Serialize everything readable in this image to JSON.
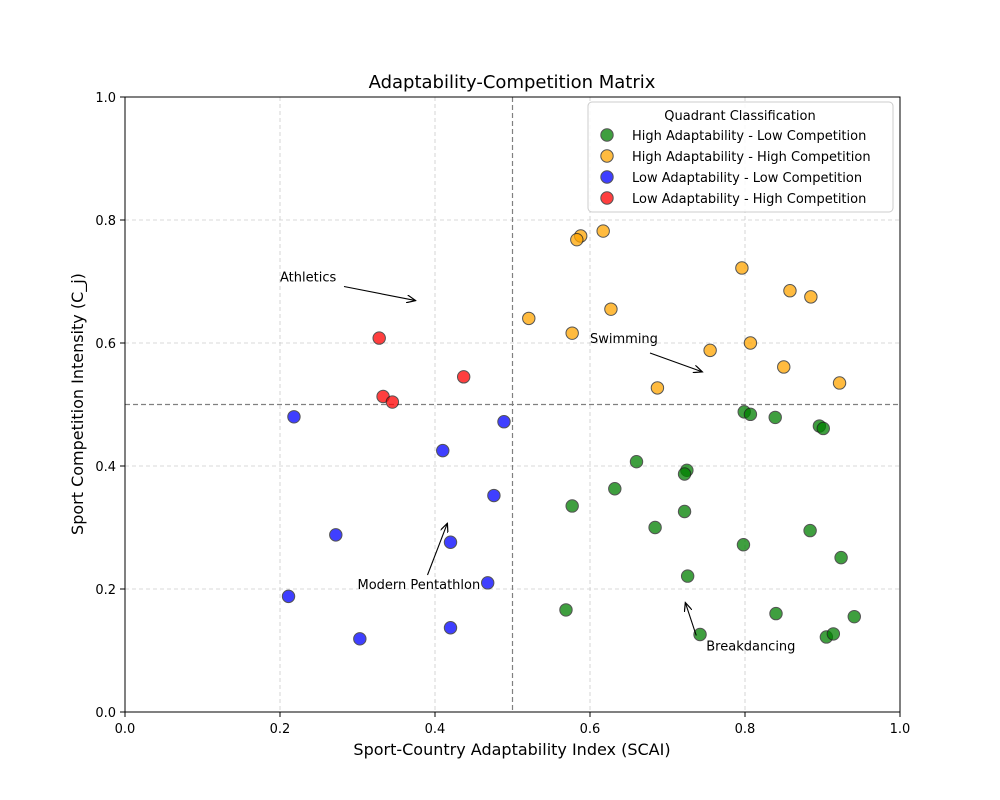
{
  "chart_data": {
    "type": "scatter",
    "title": "Adaptability-Competition Matrix",
    "xlabel": "Sport-Country Adaptability Index (SCAI)",
    "ylabel": "Sport Competition Intensity (C_j)",
    "xlim": [
      0,
      1
    ],
    "ylim": [
      0,
      1
    ],
    "xticks": [
      "0.0",
      "0.2",
      "0.4",
      "0.6",
      "0.8",
      "1.0"
    ],
    "yticks": [
      "0.0",
      "0.2",
      "0.4",
      "0.6",
      "0.8",
      "1.0"
    ],
    "grid": true,
    "reference_lines": {
      "x": 0.5,
      "y": 0.5
    },
    "legend": {
      "title": "Quadrant Classification",
      "placement": "top-right"
    },
    "series": [
      {
        "name": "High Adaptability - Low Competition",
        "color": "#008000",
        "points": [
          [
            0.799,
            0.488
          ],
          [
            0.807,
            0.484
          ],
          [
            0.839,
            0.479
          ],
          [
            0.896,
            0.465
          ],
          [
            0.901,
            0.461
          ],
          [
            0.66,
            0.407
          ],
          [
            0.725,
            0.393
          ],
          [
            0.722,
            0.387
          ],
          [
            0.632,
            0.363
          ],
          [
            0.577,
            0.335
          ],
          [
            0.722,
            0.326
          ],
          [
            0.684,
            0.3
          ],
          [
            0.884,
            0.295
          ],
          [
            0.798,
            0.272
          ],
          [
            0.924,
            0.251
          ],
          [
            0.726,
            0.221
          ],
          [
            0.569,
            0.166
          ],
          [
            0.84,
            0.16
          ],
          [
            0.941,
            0.155
          ],
          [
            0.742,
            0.126
          ],
          [
            0.905,
            0.122
          ],
          [
            0.914,
            0.127
          ]
        ]
      },
      {
        "name": "High Adaptability - High Competition",
        "color": "#FFA500",
        "points": [
          [
            0.617,
            0.782
          ],
          [
            0.588,
            0.774
          ],
          [
            0.583,
            0.768
          ],
          [
            0.796,
            0.722
          ],
          [
            0.858,
            0.685
          ],
          [
            0.885,
            0.675
          ],
          [
            0.627,
            0.655
          ],
          [
            0.521,
            0.64
          ],
          [
            0.577,
            0.616
          ],
          [
            0.807,
            0.6
          ],
          [
            0.755,
            0.588
          ],
          [
            0.85,
            0.561
          ],
          [
            0.922,
            0.535
          ],
          [
            0.687,
            0.527
          ]
        ]
      },
      {
        "name": "Low Adaptability - Low Competition",
        "color": "#0000FF",
        "points": [
          [
            0.218,
            0.48
          ],
          [
            0.489,
            0.472
          ],
          [
            0.41,
            0.425
          ],
          [
            0.476,
            0.352
          ],
          [
            0.272,
            0.288
          ],
          [
            0.42,
            0.276
          ],
          [
            0.468,
            0.21
          ],
          [
            0.211,
            0.188
          ],
          [
            0.42,
            0.137
          ],
          [
            0.303,
            0.119
          ]
        ]
      },
      {
        "name": "Low Adaptability - High Competition",
        "color": "#FF0000",
        "points": [
          [
            0.328,
            0.608
          ],
          [
            0.437,
            0.545
          ],
          [
            0.333,
            0.513
          ],
          [
            0.345,
            0.504
          ]
        ]
      }
    ],
    "annotations": [
      {
        "text": "Athletics",
        "text_xy": [
          0.2,
          0.7
        ],
        "arrow_xy": [
          0.375,
          0.669
        ]
      },
      {
        "text": "Swimming",
        "text_xy": [
          0.6,
          0.6
        ],
        "arrow_xy": [
          0.745,
          0.553
        ]
      },
      {
        "text": "Modern Pentathlon",
        "text_xy": [
          0.3,
          0.2
        ],
        "arrow_xy": [
          0.416,
          0.307
        ]
      },
      {
        "text": "Breakdancing",
        "text_xy": [
          0.75,
          0.1
        ],
        "arrow_xy": [
          0.723,
          0.178
        ]
      }
    ]
  }
}
